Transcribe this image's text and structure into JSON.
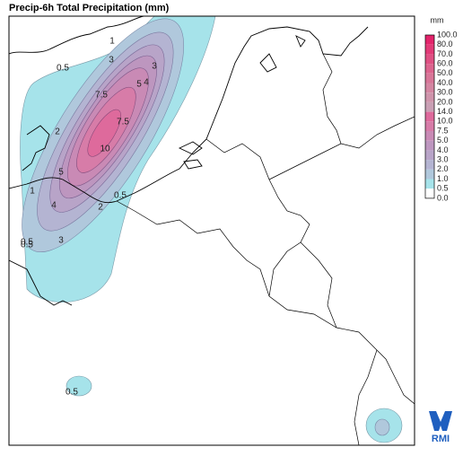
{
  "header": {
    "title": "Precip-6h Total Precipitation (mm)"
  },
  "colorbar": {
    "unit": "mm",
    "levels": [
      "100.0",
      "80.0",
      "70.0",
      "60.0",
      "50.0",
      "40.0",
      "30.0",
      "20.0",
      "14.0",
      "10.0",
      "7.5",
      "5.0",
      "4.0",
      "3.0",
      "2.0",
      "1.0",
      "0.5",
      "0.0"
    ],
    "colors": [
      "#e3246b",
      "#e23a77",
      "#df5083",
      "#dc648e",
      "#d87698",
      "#d486a2",
      "#cf94ab",
      "#c99fb4",
      "#de6a9c",
      "#d77ca8",
      "#c98ab5",
      "#bd96bf",
      "#b8a4c8",
      "#b4b4d2",
      "#b0c8dc",
      "#a6e3ea",
      "#ffffff"
    ]
  },
  "contour_labels": [
    "1",
    "3",
    "0.5",
    "3",
    "5",
    "4",
    "7.5",
    "7.5",
    "10",
    "2",
    "5",
    "1",
    "4",
    "0.5",
    "2",
    "3",
    "0.5",
    "0.5",
    "0.5"
  ],
  "logo": {
    "text": "RMI"
  }
}
